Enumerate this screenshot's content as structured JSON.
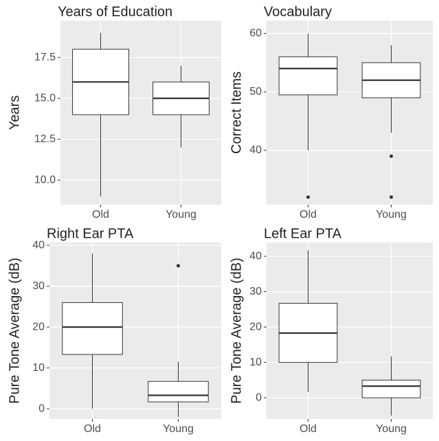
{
  "chart_data": [
    {
      "type": "box",
      "title": "Years of Education",
      "y_label": "Years",
      "categories": [
        "Old",
        "Young"
      ],
      "boxes": [
        {
          "min": 9,
          "q1": 14,
          "median": 16,
          "q3": 18,
          "max": 19,
          "outliers": []
        },
        {
          "min": 12,
          "q1": 14,
          "median": 15,
          "q3": 16,
          "max": 17,
          "outliers": []
        }
      ],
      "ylim": [
        8.5,
        19.75
      ],
      "yticks": [
        {
          "value": 10,
          "label": "10.0"
        },
        {
          "value": 12.5,
          "label": "12.5"
        },
        {
          "value": 15,
          "label": "15.0"
        },
        {
          "value": 17.5,
          "label": "17.5"
        }
      ],
      "grid": true
    },
    {
      "type": "box",
      "title": "Vocabulary",
      "y_label": "Correct Items",
      "categories": [
        "Old",
        "Young"
      ],
      "boxes": [
        {
          "min": 40,
          "q1": 49.5,
          "median": 54,
          "q3": 56,
          "max": 60,
          "outliers": [
            32
          ]
        },
        {
          "min": 43,
          "q1": 49,
          "median": 52,
          "q3": 55,
          "max": 58,
          "outliers": [
            39,
            32
          ]
        }
      ],
      "ylim": [
        30.7,
        62.2
      ],
      "yticks": [
        40,
        50,
        60
      ],
      "grid": true
    },
    {
      "type": "box",
      "title": "Right Ear PTA",
      "y_label": "Pure Tone Average (dB)",
      "categories": [
        "Old",
        "Young"
      ],
      "boxes": [
        {
          "min": 0,
          "q1": 13.3,
          "median": 20,
          "q3": 26,
          "max": 38,
          "outliers": []
        },
        {
          "min": -2,
          "q1": 1.7,
          "median": 3.3,
          "q3": 6.7,
          "max": 11.5,
          "outliers": [
            35
          ]
        }
      ],
      "ylim": [
        -2.5,
        40.7
      ],
      "yticks": [
        0,
        10,
        20,
        30,
        40
      ],
      "grid": true
    },
    {
      "type": "box",
      "title": "Left Ear PTA",
      "y_label": "Pure Tone Average (dB)",
      "categories": [
        "Old",
        "Young"
      ],
      "boxes": [
        {
          "min": 1.7,
          "q1": 10,
          "median": 18.3,
          "q3": 26.7,
          "max": 41.7,
          "outliers": []
        },
        {
          "min": -5,
          "q1": 0,
          "median": 3.3,
          "q3": 5,
          "max": 11.7,
          "outliers": []
        }
      ],
      "ylim": [
        -6,
        43.9
      ],
      "yticks": [
        0,
        10,
        20,
        30,
        40
      ],
      "grid": true
    }
  ]
}
